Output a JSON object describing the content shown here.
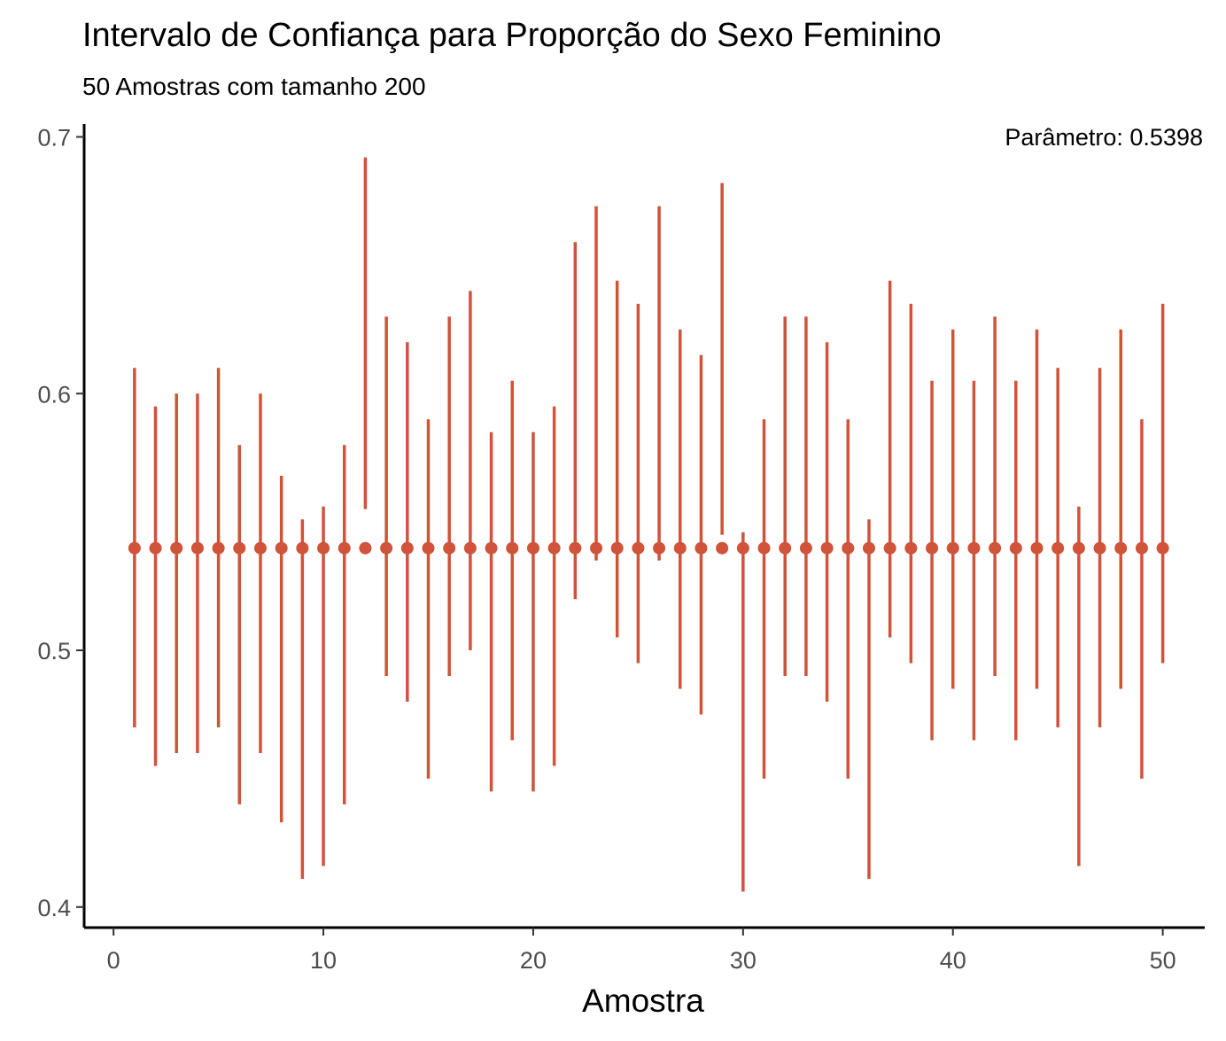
{
  "chart_data": {
    "type": "errorbar",
    "title": "Intervalo de Confiança para Proporção do Sexo Feminino",
    "subtitle": "50 Amostras com tamanho 200",
    "xlabel": "Amostra",
    "ylabel": "",
    "annotation": "Parâmetro: 0.5398",
    "parameter": 0.5398,
    "xlim": [
      -1.4,
      52
    ],
    "ylim": [
      0.392,
      0.705
    ],
    "x_ticks": [
      0,
      10,
      20,
      30,
      40,
      50
    ],
    "x_tick_labels": [
      "0",
      "10",
      "20",
      "30",
      "40",
      "50"
    ],
    "y_ticks": [
      0.4,
      0.5,
      0.6,
      0.7
    ],
    "y_tick_labels": [
      "0.4",
      "0.5",
      "0.6",
      "0.7"
    ],
    "grid": false,
    "color": "#d0533a",
    "x": [
      1,
      2,
      3,
      4,
      5,
      6,
      7,
      8,
      9,
      10,
      11,
      12,
      13,
      14,
      15,
      16,
      17,
      18,
      19,
      20,
      21,
      22,
      23,
      24,
      25,
      26,
      27,
      28,
      29,
      30,
      31,
      32,
      33,
      34,
      35,
      36,
      37,
      38,
      39,
      40,
      41,
      42,
      43,
      44,
      45,
      46,
      47,
      48,
      49,
      50
    ],
    "lower": [
      0.47,
      0.455,
      0.46,
      0.46,
      0.47,
      0.44,
      0.46,
      0.433,
      0.411,
      0.416,
      0.44,
      0.555,
      0.49,
      0.48,
      0.45,
      0.49,
      0.5,
      0.445,
      0.465,
      0.445,
      0.455,
      0.52,
      0.535,
      0.505,
      0.495,
      0.535,
      0.485,
      0.475,
      0.545,
      0.406,
      0.45,
      0.49,
      0.49,
      0.48,
      0.45,
      0.411,
      0.505,
      0.495,
      0.465,
      0.485,
      0.465,
      0.49,
      0.465,
      0.485,
      0.47,
      0.416,
      0.47,
      0.485,
      0.45,
      0.495
    ],
    "upper": [
      0.61,
      0.595,
      0.6,
      0.6,
      0.61,
      0.58,
      0.6,
      0.568,
      0.551,
      0.556,
      0.58,
      0.692,
      0.63,
      0.62,
      0.59,
      0.63,
      0.64,
      0.585,
      0.605,
      0.585,
      0.595,
      0.659,
      0.673,
      0.644,
      0.635,
      0.673,
      0.625,
      0.615,
      0.682,
      0.546,
      0.59,
      0.63,
      0.63,
      0.62,
      0.59,
      0.551,
      0.644,
      0.635,
      0.605,
      0.625,
      0.605,
      0.63,
      0.605,
      0.625,
      0.61,
      0.556,
      0.61,
      0.625,
      0.59,
      0.635
    ]
  }
}
